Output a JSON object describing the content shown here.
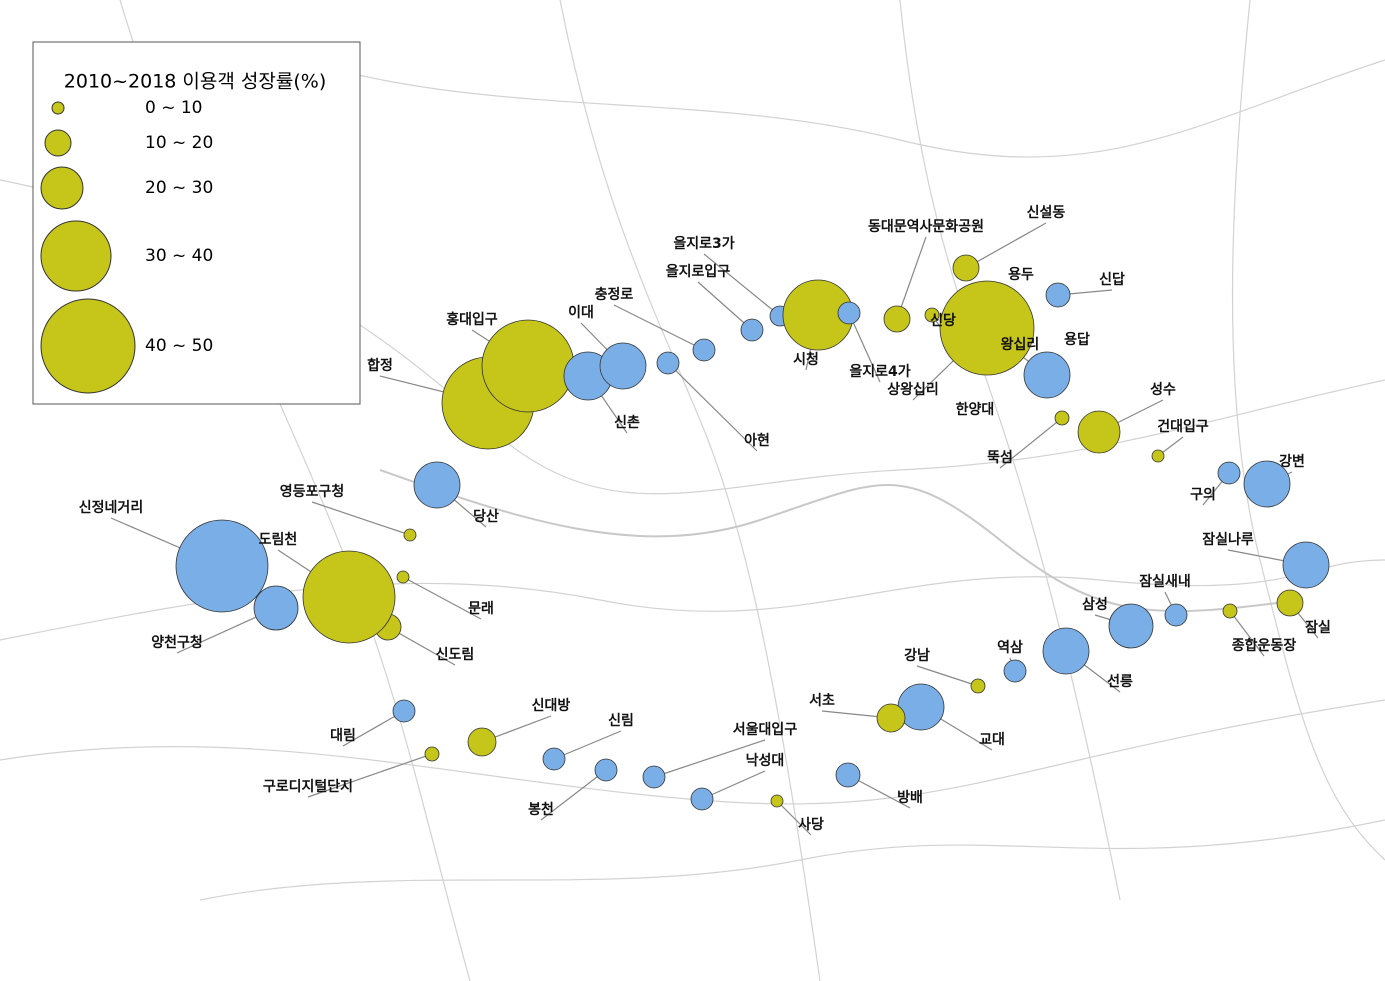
{
  "legend": {
    "title": "2010~2018 이용객 성장률(%)",
    "items": [
      "0 ~ 10",
      "10 ~ 20",
      "20 ~ 30",
      "30 ~ 40",
      "40 ~ 50"
    ]
  },
  "stations": [
    "합정",
    "홍대입구",
    "신촌",
    "이대",
    "충정로",
    "아현",
    "을지로입구",
    "을지로3가",
    "시청",
    "을지로4가",
    "동대문역사문화공원",
    "신당",
    "상왕십리",
    "신설동",
    "용두",
    "신답",
    "용답",
    "왕십리",
    "한양대",
    "뚝섬",
    "성수",
    "건대입구",
    "구의",
    "강변",
    "잠실나루",
    "잠실",
    "잠실새내",
    "종합운동장",
    "삼성",
    "선릉",
    "역삼",
    "강남",
    "교대",
    "서초",
    "방배",
    "사당",
    "낙성대",
    "서울대입구",
    "봉천",
    "신림",
    "신대방",
    "구로디지털단지",
    "대림",
    "신도림",
    "문래",
    "도림천",
    "양천구청",
    "신정네거리",
    "영등포구청",
    "당산"
  ]
}
